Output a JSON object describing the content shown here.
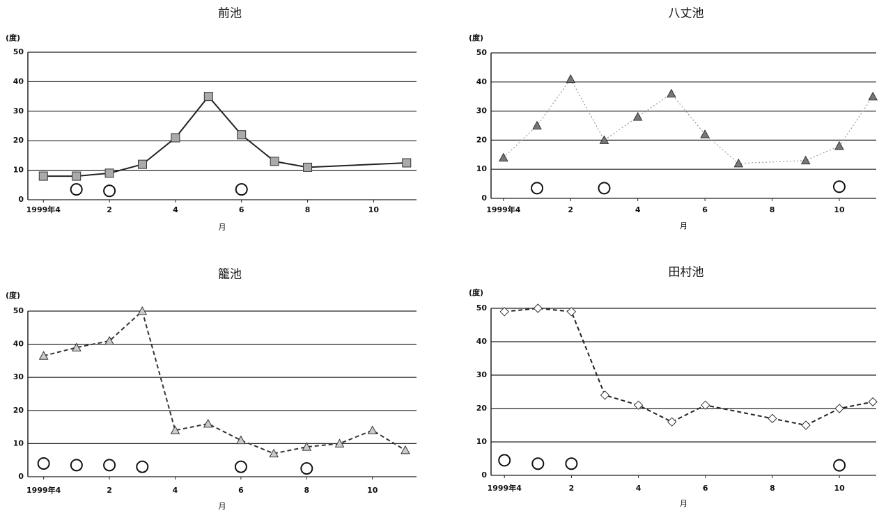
{
  "chart_data": [
    {
      "type": "line",
      "title": "前池",
      "y_unit": "(度)",
      "x_label": "月",
      "marker": "square",
      "line_style": "solid",
      "color": "#222222",
      "marker_color": "#aaaaaa",
      "x": [
        0,
        1,
        2,
        3,
        4,
        5,
        6,
        7,
        8,
        11
      ],
      "values": [
        8,
        8,
        9,
        12,
        21,
        35,
        22,
        13,
        11,
        12.5
      ],
      "circles": {
        "x": [
          1,
          2,
          6
        ],
        "values": [
          3.5,
          3,
          3.5
        ]
      },
      "xlim": [
        -0.47,
        11.3
      ],
      "xticks": [
        {
          "value": 0,
          "label": "1999年4"
        },
        2,
        4,
        6,
        8,
        10,
        {
          "value": 12,
          "label": "2"
        }
      ],
      "ylim": [
        0,
        50
      ],
      "yticks": [
        0,
        10,
        20,
        30,
        40,
        50
      ],
      "grid": true
    },
    {
      "type": "line",
      "title": "八丈池",
      "y_unit": "(度)",
      "x_label": "月",
      "marker": "triangle",
      "line_style": "dotted",
      "color": "#999999",
      "marker_color": "#777777",
      "x": [
        0,
        1,
        2,
        3,
        4,
        5,
        6,
        7,
        9,
        10,
        11
      ],
      "values": [
        14,
        25,
        41,
        20,
        28,
        36,
        22,
        12,
        13,
        18,
        35
      ],
      "circles": {
        "x": [
          1,
          3,
          10
        ],
        "values": [
          3.5,
          3.5,
          4
        ]
      },
      "xlim": [
        -0.37,
        11.1
      ],
      "xticks": [
        {
          "value": 0,
          "label": "1999年4"
        },
        2,
        4,
        6,
        8,
        10,
        {
          "value": 12,
          "label": "2"
        }
      ],
      "ylim": [
        0,
        50
      ],
      "yticks": [
        0,
        10,
        20,
        30,
        40,
        50
      ],
      "grid": true
    },
    {
      "type": "line",
      "title": "籠池",
      "y_unit": "(度)",
      "x_label": "月",
      "marker": "triangle",
      "line_style": "dashed",
      "color": "#333333",
      "marker_color": "#cccccc",
      "x": [
        0,
        1,
        2,
        3,
        4,
        5,
        6,
        7,
        8,
        9,
        10,
        11
      ],
      "values": [
        36.5,
        39,
        41,
        50,
        14,
        16,
        11,
        7,
        9,
        10,
        14,
        8
      ],
      "circles": {
        "x": [
          0,
          1,
          2,
          3,
          6,
          8
        ],
        "values": [
          4,
          3.5,
          3.5,
          3,
          3,
          2.5
        ]
      },
      "xlim": [
        -0.48,
        11.34
      ],
      "xticks": [
        {
          "value": 0,
          "label": "1999年4"
        },
        2,
        4,
        6,
        8,
        10,
        {
          "value": 12,
          "label": "2"
        }
      ],
      "ylim": [
        0,
        50
      ],
      "yticks": [
        0,
        10,
        20,
        30,
        40,
        50
      ],
      "grid": true
    },
    {
      "type": "line",
      "title": "田村池",
      "y_unit": "(度)",
      "x_label": "月",
      "marker": "diamond",
      "line_style": "dashed",
      "color": "#222222",
      "marker_color": "#ffffff",
      "x": [
        0,
        1,
        2,
        3,
        4,
        5,
        6,
        8,
        9,
        10,
        11
      ],
      "values": [
        49,
        50,
        49,
        24,
        21,
        16,
        21,
        17,
        15,
        20,
        22
      ],
      "circles": {
        "x": [
          0,
          1,
          2,
          10
        ],
        "values": [
          4.5,
          3.5,
          3.5,
          3
        ]
      },
      "xlim": [
        -0.4,
        11.1
      ],
      "xticks": [
        {
          "value": 0,
          "label": "1999年4"
        },
        2,
        4,
        6,
        8,
        10,
        {
          "value": 12,
          "label": "2"
        }
      ],
      "ylim": [
        0,
        50
      ],
      "yticks": [
        0,
        10,
        20,
        30,
        40,
        50
      ],
      "grid": true
    }
  ]
}
